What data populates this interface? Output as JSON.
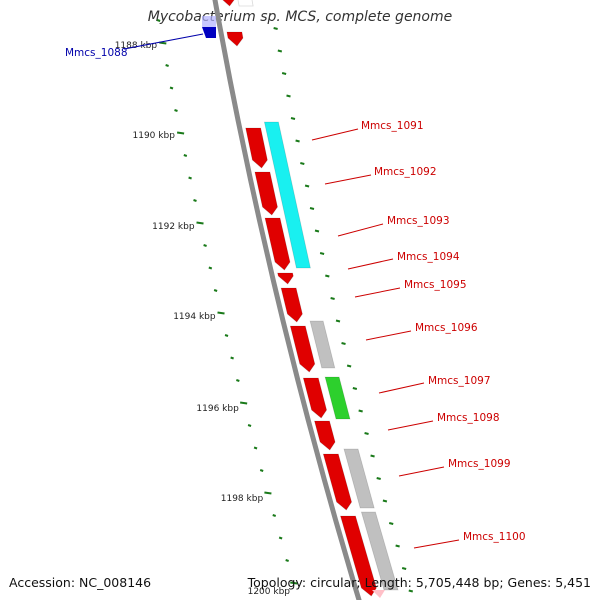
{
  "title": "Mycobacterium sp. MCS, complete genome",
  "footer": {
    "accession": "Accession: NC_008146",
    "summary": "Topology: circular; Length: 5,705,448 bp; Genes: 5,451"
  },
  "colors": {
    "backbone": "#8a8a8a",
    "tick": "#1a7a1a",
    "red_gene": "#e00000",
    "cyan_gene": "#19f0f0",
    "green_gene": "#2dd02d",
    "gray_gene": "#c0c0c0",
    "blue_gene": "#0000c0",
    "red_label": "#cc0000",
    "blue_label": "#0000aa"
  },
  "scale_labels": [
    "1188 kbp",
    "1190 kbp",
    "1192 kbp",
    "1194 kbp",
    "1196 kbp",
    "1198 kbp",
    "1200 kbp"
  ],
  "gene_labels": [
    {
      "text": "Mmcs_1088",
      "color": "blue"
    },
    {
      "text": "Mmcs_1091",
      "color": "red"
    },
    {
      "text": "Mmcs_1092",
      "color": "red"
    },
    {
      "text": "Mmcs_1093",
      "color": "red"
    },
    {
      "text": "Mmcs_1094",
      "color": "red"
    },
    {
      "text": "Mmcs_1095",
      "color": "red"
    },
    {
      "text": "Mmcs_1096",
      "color": "red"
    },
    {
      "text": "Mmcs_1097",
      "color": "red"
    },
    {
      "text": "Mmcs_1098",
      "color": "red"
    },
    {
      "text": "Mmcs_1099",
      "color": "red"
    },
    {
      "text": "Mmcs_1100",
      "color": "red"
    }
  ]
}
